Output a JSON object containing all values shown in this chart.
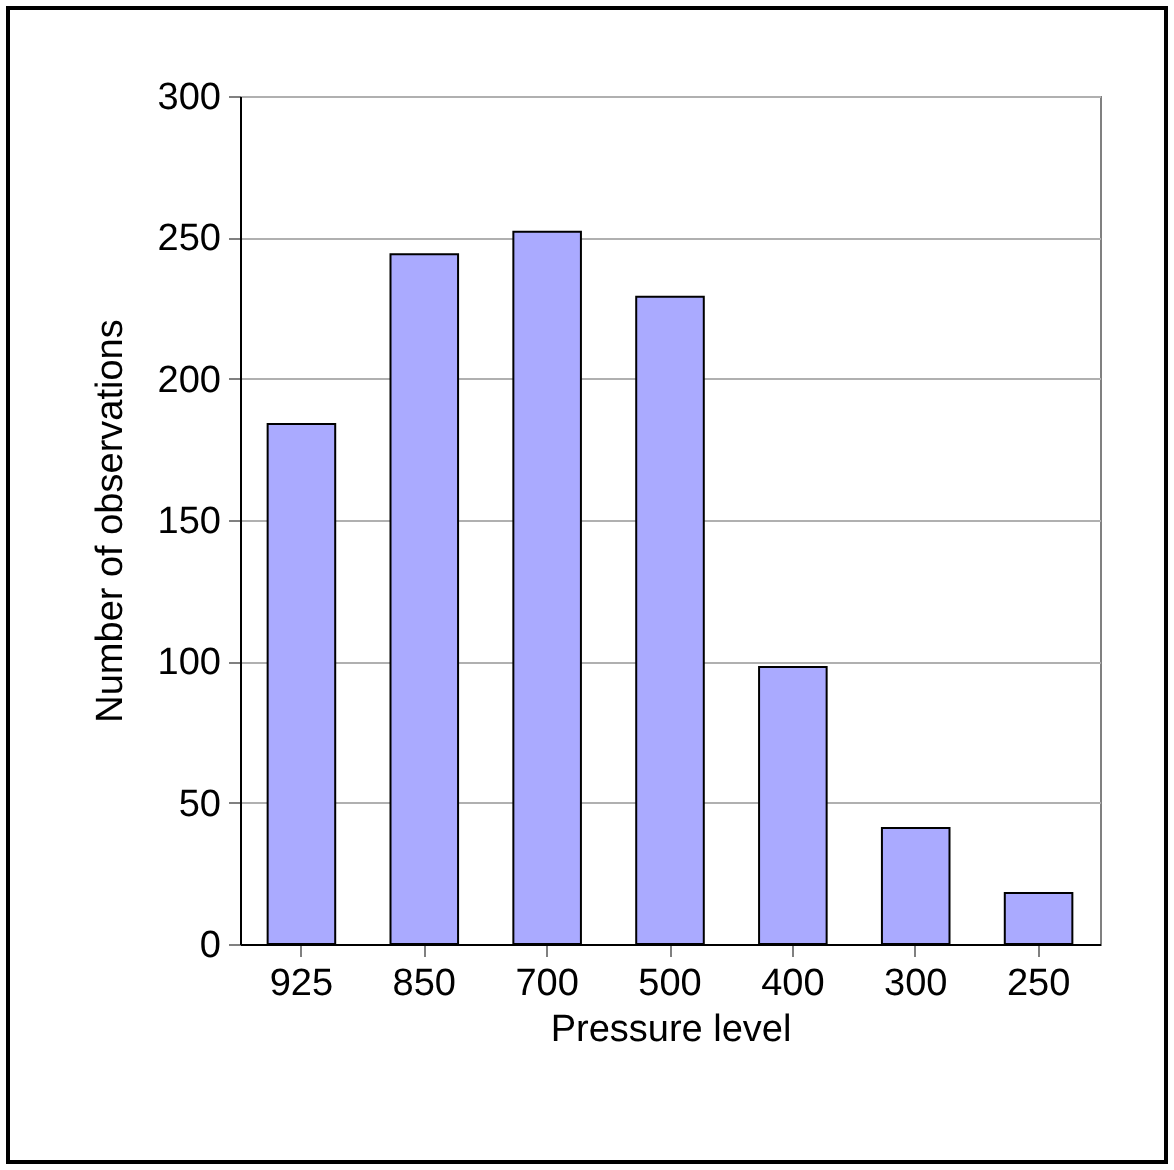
{
  "chart_data": {
    "type": "bar",
    "xlabel": "Pressure level",
    "ylabel": "Number of observations",
    "categories": [
      "925",
      "850",
      "700",
      "500",
      "400",
      "300",
      "250"
    ],
    "values": [
      184,
      244,
      252,
      229,
      98,
      41,
      18
    ],
    "color": "#aaaaff",
    "ylim": [
      0,
      300
    ],
    "yticks": [
      0,
      50,
      100,
      150,
      200,
      250,
      300
    ],
    "grid": "y"
  }
}
